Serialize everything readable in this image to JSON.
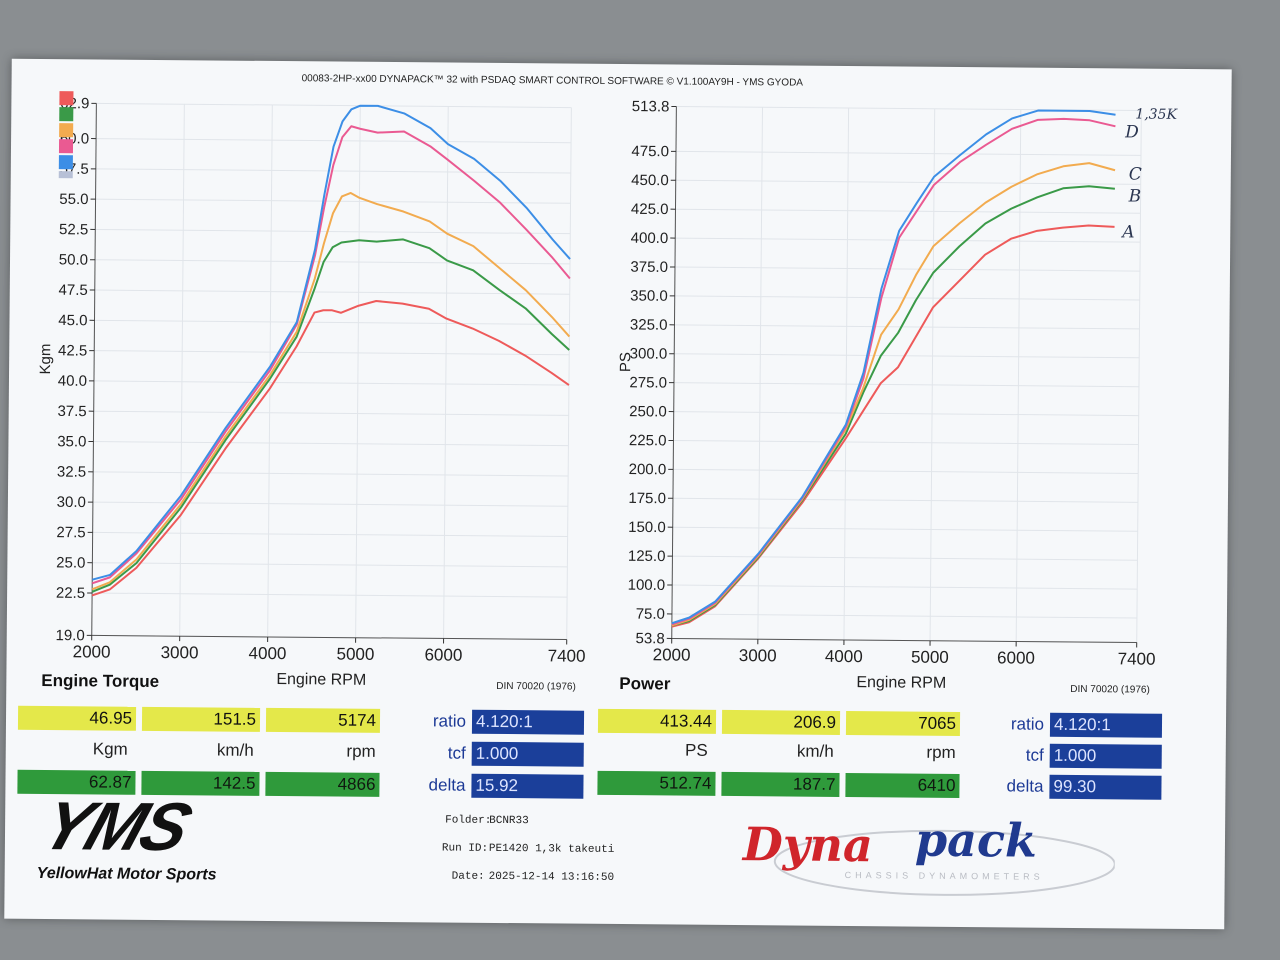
{
  "header": "00083-2HP-xx00 DYNAPACK™ 32 with PSDAQ SMART CONTROL SOFTWARE © V1.100AY9H - YMS GYODA",
  "legend_colors": [
    "#ee5a5a",
    "#3a9a48",
    "#f2ab4f",
    "#ea5a92",
    "#3c8ee6",
    "#b7c0d6"
  ],
  "chart_data": [
    {
      "type": "line",
      "title": "Engine Torque",
      "xlabel": "Engine RPM",
      "ylabel": "Kgm",
      "note": "DIN 70020 (1976)",
      "xlim": [
        2000,
        7400
      ],
      "ylim": [
        19.0,
        62.9
      ],
      "xticks": [
        "2000",
        "3000",
        "4000",
        "5000",
        "6000",
        "7400"
      ],
      "yticks": [
        "62.9",
        "60.0",
        "57.5",
        "55.0",
        "52.5",
        "50.0",
        "47.5",
        "45.0",
        "42.5",
        "40.0",
        "37.5",
        "35.0",
        "32.5",
        "30.0",
        "27.5",
        "25.0",
        "22.5",
        "19.0"
      ],
      "series": [
        {
          "name": "A",
          "color": "#ee5a5a",
          "x": [
            2000,
            2200,
            2500,
            3000,
            3500,
            4000,
            4300,
            4500,
            4600,
            4700,
            4800,
            5000,
            5200,
            5500,
            5800,
            6000,
            6300,
            6600,
            6900,
            7200,
            7400
          ],
          "y": [
            22.3,
            22.8,
            24.6,
            29.0,
            34.5,
            39.5,
            43.0,
            45.8,
            46.0,
            46.0,
            45.8,
            46.4,
            46.8,
            46.6,
            46.2,
            45.4,
            44.6,
            43.6,
            42.4,
            41.0,
            40.0
          ]
        },
        {
          "name": "B",
          "color": "#3a9a48",
          "x": [
            2000,
            2200,
            2500,
            3000,
            3500,
            4000,
            4300,
            4500,
            4600,
            4700,
            4800,
            5000,
            5200,
            5500,
            5800,
            6000,
            6300,
            6600,
            6900,
            7200,
            7400
          ],
          "y": [
            22.6,
            23.2,
            25.0,
            29.6,
            35.2,
            40.3,
            43.8,
            47.8,
            50.0,
            51.2,
            51.6,
            51.8,
            51.7,
            51.9,
            51.2,
            50.2,
            49.4,
            47.8,
            46.3,
            44.2,
            42.9
          ]
        },
        {
          "name": "C",
          "color": "#f2ab4f",
          "x": [
            2000,
            2200,
            2500,
            3000,
            3500,
            4000,
            4300,
            4500,
            4600,
            4700,
            4800,
            4900,
            5000,
            5200,
            5500,
            5800,
            6000,
            6300,
            6600,
            6900,
            7200,
            7400
          ],
          "y": [
            22.8,
            23.4,
            25.3,
            29.9,
            35.5,
            40.6,
            44.2,
            48.6,
            51.5,
            54.0,
            55.4,
            55.7,
            55.3,
            54.8,
            54.2,
            53.4,
            52.4,
            51.4,
            49.6,
            47.8,
            45.6,
            44.0
          ]
        },
        {
          "name": "D",
          "color": "#ea5a92",
          "x": [
            2000,
            2200,
            2500,
            3000,
            3500,
            4000,
            4300,
            4500,
            4600,
            4700,
            4800,
            4900,
            5000,
            5200,
            5500,
            5800,
            6000,
            6300,
            6600,
            6900,
            7200,
            7400
          ],
          "y": [
            23.3,
            23.8,
            25.8,
            30.3,
            35.9,
            41.0,
            44.8,
            50.5,
            54.5,
            58.0,
            60.3,
            61.2,
            61.0,
            60.7,
            60.8,
            59.6,
            58.5,
            56.8,
            55.0,
            52.8,
            50.5,
            48.8
          ]
        },
        {
          "name": "1.35k",
          "color": "#3c8ee6",
          "x": [
            2000,
            2200,
            2500,
            3000,
            3500,
            4000,
            4300,
            4500,
            4600,
            4700,
            4800,
            4900,
            5000,
            5200,
            5500,
            5800,
            6000,
            6300,
            6600,
            6900,
            7200,
            7400
          ],
          "y": [
            23.6,
            24.0,
            26.0,
            30.6,
            36.2,
            41.3,
            45.0,
            51.0,
            55.5,
            59.5,
            61.6,
            62.6,
            62.9,
            62.9,
            62.3,
            61.1,
            59.8,
            58.6,
            56.8,
            54.6,
            52.0,
            50.4
          ]
        }
      ]
    },
    {
      "type": "line",
      "title": "Power",
      "xlabel": "Engine RPM",
      "ylabel": "PS",
      "note": "DIN 70020 (1976)",
      "xlim": [
        2000,
        7400
      ],
      "ylim": [
        53.8,
        513.8
      ],
      "xticks": [
        "2000",
        "3000",
        "4000",
        "5000",
        "6000",
        "7400"
      ],
      "yticks": [
        "513.8",
        "475.0",
        "450.0",
        "425.0",
        "400.0",
        "375.0",
        "350.0",
        "325.0",
        "300.0",
        "275.0",
        "250.0",
        "225.0",
        "200.0",
        "175.0",
        "150.0",
        "125.0",
        "100.0",
        "75.0",
        "53.8"
      ],
      "series": [
        {
          "name": "A",
          "color": "#ee5a5a",
          "x": [
            2000,
            2200,
            2500,
            3000,
            3500,
            4000,
            4200,
            4400,
            4600,
            4800,
            5000,
            5300,
            5600,
            5900,
            6200,
            6500,
            6800,
            7100
          ],
          "y": [
            64,
            68,
            82,
            124,
            172,
            228,
            252,
            276,
            290,
            316,
            342,
            365,
            388,
            402,
            409,
            412,
            414,
            413
          ]
        },
        {
          "name": "B",
          "color": "#3a9a48",
          "x": [
            2000,
            2200,
            2500,
            3000,
            3500,
            4000,
            4200,
            4400,
            4600,
            4800,
            5000,
            5300,
            5600,
            5900,
            6200,
            6500,
            6800,
            7100
          ],
          "y": [
            65,
            69,
            83,
            125,
            174,
            232,
            268,
            300,
            320,
            348,
            372,
            395,
            415,
            428,
            438,
            446,
            448,
            446
          ]
        },
        {
          "name": "C",
          "color": "#f2ab4f",
          "x": [
            2000,
            2200,
            2500,
            3000,
            3500,
            4000,
            4200,
            4400,
            4600,
            4800,
            5000,
            5300,
            5600,
            5900,
            6200,
            6500,
            6800,
            7100
          ],
          "y": [
            65,
            70,
            84,
            126,
            175,
            236,
            272,
            318,
            340,
            370,
            395,
            415,
            433,
            447,
            458,
            465,
            468,
            462
          ]
        },
        {
          "name": "D",
          "color": "#ea5a92",
          "x": [
            2000,
            2200,
            2500,
            3000,
            3500,
            4000,
            4200,
            4400,
            4600,
            4800,
            5000,
            5300,
            5600,
            5900,
            6200,
            6500,
            6800,
            7100
          ],
          "y": [
            66,
            71,
            85,
            127,
            176,
            238,
            280,
            350,
            402,
            425,
            448,
            468,
            483,
            497,
            505,
            506,
            505,
            500
          ]
        },
        {
          "name": "1.35k",
          "color": "#3c8ee6",
          "x": [
            2000,
            2200,
            2500,
            3000,
            3500,
            4000,
            4200,
            4400,
            4600,
            4800,
            5000,
            5300,
            5600,
            5900,
            6200,
            6500,
            6800,
            7100
          ],
          "y": [
            67,
            72,
            86,
            128,
            177,
            240,
            285,
            358,
            408,
            432,
            455,
            474,
            492,
            506,
            513,
            513,
            513,
            510
          ]
        }
      ]
    }
  ],
  "torque_panel": {
    "title": "Engine Torque",
    "xlabel": "Engine RPM",
    "note": "DIN 70020 (1976)",
    "row1": [
      "46.95",
      "151.5",
      "5174"
    ],
    "units": [
      "Kgm",
      "km/h",
      "rpm"
    ],
    "row2": [
      "62.87",
      "142.5",
      "4866"
    ],
    "ratio_label": "ratio",
    "ratio_value": "4.120:1",
    "tcf_label": "tcf",
    "tcf_value": "1.000",
    "delta_label": "delta",
    "delta_value": "15.92"
  },
  "power_panel": {
    "title": "Power",
    "xlabel": "Engine RPM",
    "note": "DIN 70020 (1976)",
    "row1": [
      "413.44",
      "206.9",
      "7065"
    ],
    "units": [
      "PS",
      "km/h",
      "rpm"
    ],
    "row2": [
      "512.74",
      "187.7",
      "6410"
    ],
    "ratio_label": "ratio",
    "ratio_value": "4.120:1",
    "tcf_label": "tcf",
    "tcf_value": "1.000",
    "delta_label": "delta",
    "delta_value": "99.30"
  },
  "meta": {
    "folder_label": "Folder:",
    "folder": "BCNR33",
    "run_label": "Run ID:",
    "run": "PE1420 1,3k takeuti",
    "date_label": "Date:",
    "date": "2025-12-14 13:16:50"
  },
  "handwritten": {
    "top": "1,35K",
    "d": "D",
    "c": "C",
    "b": "B",
    "a": "A"
  },
  "logos": {
    "yms": "YMS",
    "yms_sub": "YellowHat Motor Sports",
    "dyna_left": "Dyna",
    "dyna_right": "pack",
    "dyna_sub": "CHASSIS DYNAMOMETERS"
  }
}
